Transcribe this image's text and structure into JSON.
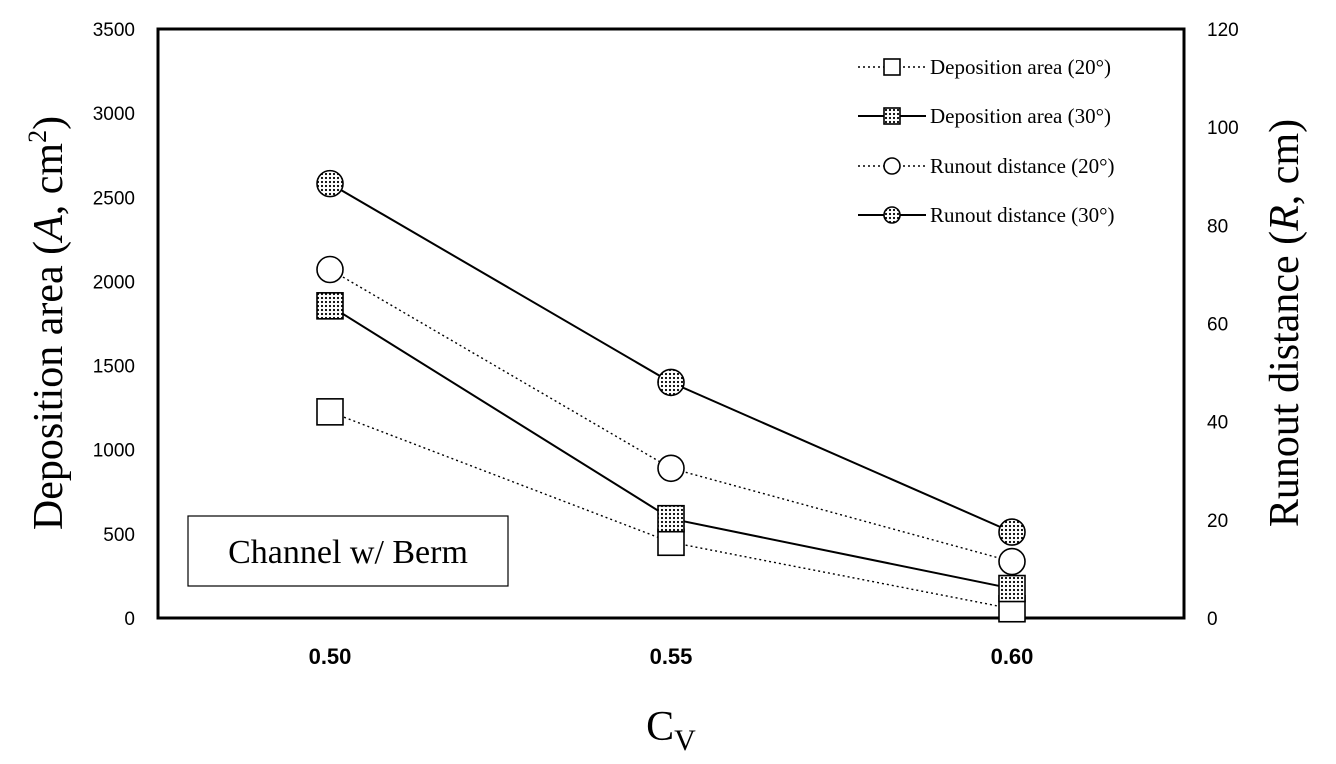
{
  "chart_data": {
    "type": "line",
    "categories": [
      "0.50",
      "0.55",
      "0.60"
    ],
    "x": [
      0.5,
      0.55,
      0.6
    ],
    "xlabel": "C",
    "xlabel_sub": "V",
    "ylabel_left": {
      "pre": "Deposition area (",
      "var": "A",
      "post": ", cm",
      "sup": "2",
      "close": ")"
    },
    "ylabel_right": {
      "pre": "Runout distance (",
      "var": "R",
      "post": ", cm)"
    },
    "ylim_left": [
      0,
      3500
    ],
    "yticks_left": [
      0,
      500,
      1000,
      1500,
      2000,
      2500,
      3000,
      3500
    ],
    "ylim_right": [
      0,
      120
    ],
    "yticks_right": [
      0,
      20,
      40,
      60,
      80,
      100,
      120
    ],
    "grid": false,
    "legend_position": "top-right",
    "annotation": "Channel w/ Berm",
    "series": [
      {
        "name": "Deposition area (20°)",
        "axis": "left",
        "marker": "square",
        "fill": "open",
        "line": "dotted",
        "values": [
          1225,
          450,
          55
        ]
      },
      {
        "name": "Deposition area (30°)",
        "axis": "left",
        "marker": "square",
        "fill": "dotted",
        "line": "solid",
        "values": [
          1855,
          590,
          175
        ]
      },
      {
        "name": "Runout distance (20°)",
        "axis": "right",
        "marker": "circle",
        "fill": "open",
        "line": "dotted",
        "values": [
          71,
          30.5,
          11.5
        ]
      },
      {
        "name": "Runout distance (30°)",
        "axis": "right",
        "marker": "circle",
        "fill": "dotted",
        "line": "solid",
        "values": [
          88.5,
          48,
          17.5
        ]
      }
    ]
  }
}
